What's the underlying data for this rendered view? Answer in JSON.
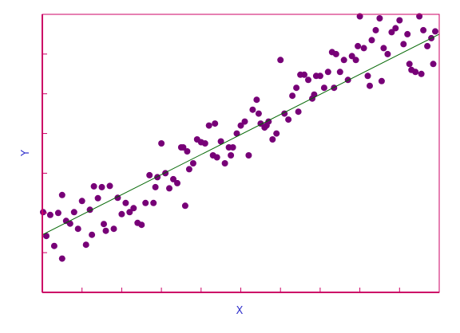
{
  "chart_data": {
    "type": "scatter",
    "title": "",
    "xlabel": "X",
    "ylabel": "Y",
    "xlim": [
      0,
      10
    ],
    "ylim": [
      0,
      7
    ],
    "grid": false,
    "legend": "none",
    "x_ticks": [
      1,
      2,
      3,
      4,
      5,
      6,
      7,
      8,
      9
    ],
    "y_ticks": [
      1,
      2,
      3,
      4,
      5,
      6
    ],
    "tick_labels_shown": false,
    "points": {
      "x": [
        0.02,
        0.1,
        0.2,
        0.3,
        0.4,
        0.5,
        0.6,
        0.7,
        0.8,
        0.9,
        1.0,
        1.1,
        1.2,
        1.3,
        1.4,
        1.5,
        1.6,
        1.7,
        1.8,
        1.9,
        2.0,
        2.1,
        2.2,
        2.3,
        2.4,
        2.5,
        2.6,
        2.7,
        2.8,
        2.9,
        3.0,
        3.1,
        3.2,
        3.3,
        3.4,
        3.5,
        3.6,
        3.7,
        3.8,
        3.9,
        4.0,
        4.1,
        4.2,
        4.3,
        4.4,
        4.5,
        4.6,
        4.7,
        4.8,
        4.9,
        5.0,
        5.1,
        5.2,
        5.3,
        5.4,
        5.5,
        5.6,
        5.7,
        5.8,
        5.9,
        6.0,
        6.1,
        6.2,
        6.3,
        6.4,
        6.5,
        6.6,
        6.7,
        6.8,
        6.9,
        7.0,
        7.1,
        7.2,
        7.3,
        7.4,
        7.5,
        7.6,
        7.7,
        7.8,
        7.9,
        8.0,
        8.1,
        8.2,
        8.3,
        8.4,
        8.5,
        8.6,
        8.7,
        8.8,
        8.9,
        9.0,
        9.1,
        9.2,
        9.3,
        9.4,
        9.5,
        9.6,
        9.7,
        9.8,
        9.9,
        1.25,
        1.55,
        2.85,
        3.55,
        4.35,
        4.75,
        5.45,
        5.65,
        6.45,
        6.85,
        7.35,
        7.95,
        8.25,
        8.55,
        9.25,
        9.55,
        9.85,
        0.5,
        3.65
      ],
      "y": [
        2.02,
        1.42,
        1.95,
        1.17,
        2.0,
        0.85,
        1.8,
        1.73,
        2.02,
        1.6,
        2.3,
        1.2,
        2.08,
        2.67,
        2.37,
        2.65,
        1.55,
        2.68,
        1.6,
        2.38,
        1.97,
        2.25,
        2.02,
        2.12,
        1.75,
        1.7,
        2.25,
        2.95,
        2.25,
        2.9,
        3.75,
        3.0,
        2.62,
        2.85,
        2.75,
        3.65,
        2.18,
        3.1,
        3.25,
        3.85,
        3.78,
        3.75,
        4.2,
        3.45,
        3.4,
        3.8,
        3.25,
        3.65,
        3.65,
        4.0,
        4.2,
        4.3,
        3.45,
        4.6,
        4.85,
        4.25,
        4.15,
        4.3,
        3.85,
        4.0,
        5.85,
        4.5,
        4.35,
        4.95,
        5.15,
        5.48,
        5.48,
        5.35,
        4.88,
        5.45,
        5.45,
        5.15,
        5.55,
        6.05,
        6.0,
        5.55,
        5.85,
        5.35,
        5.95,
        5.85,
        6.95,
        6.15,
        5.45,
        6.35,
        6.6,
        6.9,
        6.15,
        6.0,
        6.55,
        6.65,
        6.85,
        6.25,
        6.5,
        5.6,
        5.55,
        6.95,
        6.6,
        6.2,
        6.4,
        6.57,
        1.45,
        1.72,
        2.65,
        3.65,
        4.25,
        3.45,
        4.5,
        4.2,
        4.55,
        4.98,
        5.15,
        6.2,
        5.2,
        5.32,
        5.75,
        5.5,
        5.75,
        2.45,
        3.55
      ]
    },
    "fit_line": {
      "x": [
        0,
        10
      ],
      "y": [
        1.45,
        6.5
      ]
    },
    "colors": {
      "axes": "#cc0066",
      "points": "#770077",
      "fit_line": "#006600",
      "labels": "#3333cc",
      "background": "#ffffff"
    }
  }
}
